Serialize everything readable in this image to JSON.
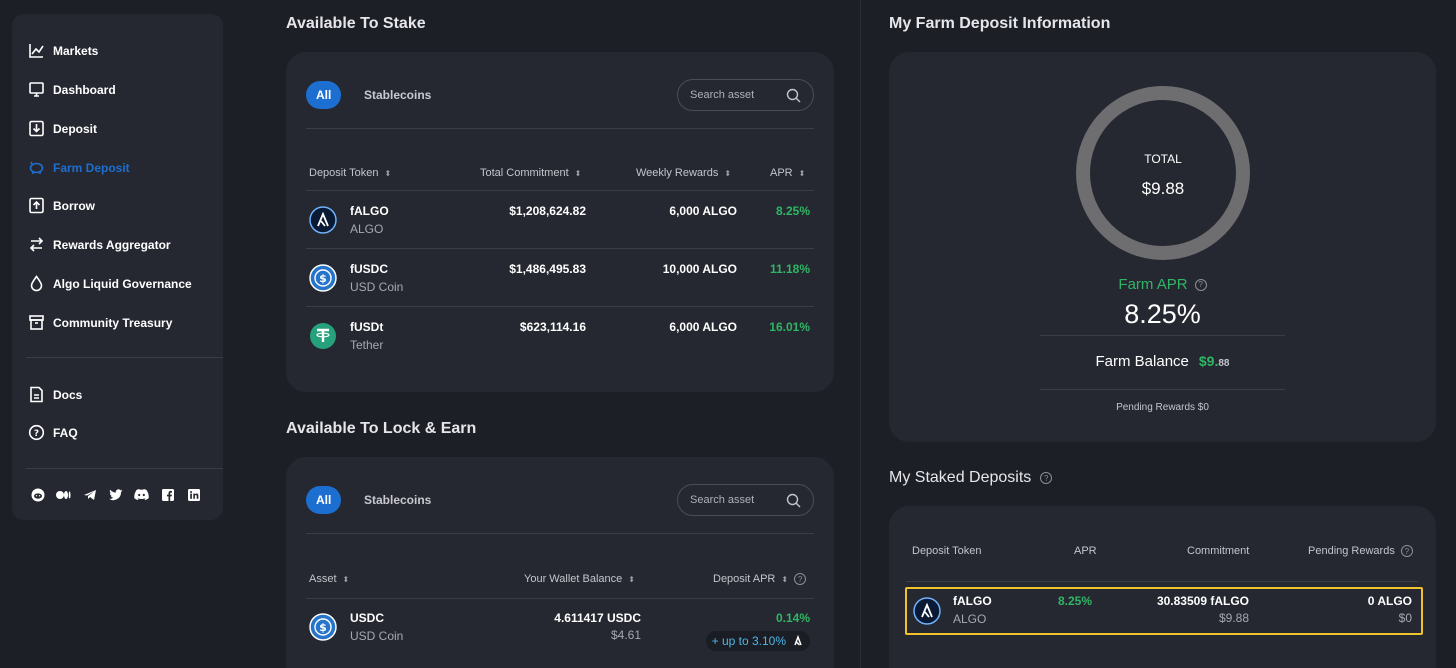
{
  "sidebar": {
    "items": [
      {
        "label": "Markets",
        "icon": "chart-line-icon"
      },
      {
        "label": "Dashboard",
        "icon": "monitor-icon"
      },
      {
        "label": "Deposit",
        "icon": "deposit-icon"
      },
      {
        "label": "Farm Deposit",
        "icon": "piggy-bank-icon",
        "active": true
      },
      {
        "label": "Borrow",
        "icon": "borrow-icon"
      },
      {
        "label": "Rewards Aggregator",
        "icon": "swap-arrows-icon"
      },
      {
        "label": "Algo Liquid Governance",
        "icon": "droplet-icon"
      },
      {
        "label": "Community Treasury",
        "icon": "treasury-icon"
      }
    ],
    "secondary": [
      {
        "label": "Docs",
        "icon": "document-icon"
      },
      {
        "label": "FAQ",
        "icon": "question-icon"
      }
    ],
    "socials": [
      "reddit-icon",
      "medium-icon",
      "telegram-icon",
      "twitter-icon",
      "discord-icon",
      "facebook-icon",
      "linkedin-icon"
    ]
  },
  "stake": {
    "title": "Available To Stake",
    "tabs": [
      "All",
      "Stablecoins"
    ],
    "search_placeholder": "Search asset",
    "headers": [
      "Deposit Token",
      "Total Commitment",
      "Weekly Rewards",
      "APR"
    ],
    "rows": [
      {
        "token": "fALGO",
        "name": "ALGO",
        "commitment": "$1,208,624.82",
        "rewards": "6,000 ALGO",
        "apr": "8.25%"
      },
      {
        "token": "fUSDC",
        "name": "USD Coin",
        "commitment": "$1,486,495.83",
        "rewards": "10,000 ALGO",
        "apr": "11.18%"
      },
      {
        "token": "fUSDt",
        "name": "Tether",
        "commitment": "$623,114.16",
        "rewards": "6,000 ALGO",
        "apr": "16.01%"
      }
    ]
  },
  "lock": {
    "title": "Available To Lock & Earn",
    "tabs": [
      "All",
      "Stablecoins"
    ],
    "search_placeholder": "Search asset",
    "headers": [
      "Asset",
      "Your Wallet Balance",
      "Deposit APR"
    ],
    "rows": [
      {
        "token": "USDC",
        "name": "USD Coin",
        "balance": "4.611417 USDC",
        "balance_usd": "$4.61",
        "apr": "0.14%",
        "boost": "+ up to 3.10%"
      }
    ]
  },
  "farm_info": {
    "title": "My Farm Deposit Information",
    "total_label": "TOTAL",
    "total_value": "$9.88",
    "apr_label": "Farm APR",
    "apr_value": "8.25%",
    "balance_label": "Farm Balance",
    "balance_main": "$9.",
    "balance_cents": "88",
    "pending": "Pending Rewards $0"
  },
  "staked": {
    "title": "My Staked Deposits",
    "headers": [
      "Deposit Token",
      "APR",
      "Commitment",
      "Pending Rewards"
    ],
    "row": {
      "token": "fALGO",
      "name": "ALGO",
      "apr": "8.25%",
      "commitment": "30.83509 fALGO",
      "commitment_usd": "$9.88",
      "rewards": "0 ALGO",
      "rewards_usd": "$0"
    }
  },
  "colors": {
    "accent": "#1c6fd0",
    "positive": "#2fb565",
    "highlight": "#f0c22c"
  }
}
